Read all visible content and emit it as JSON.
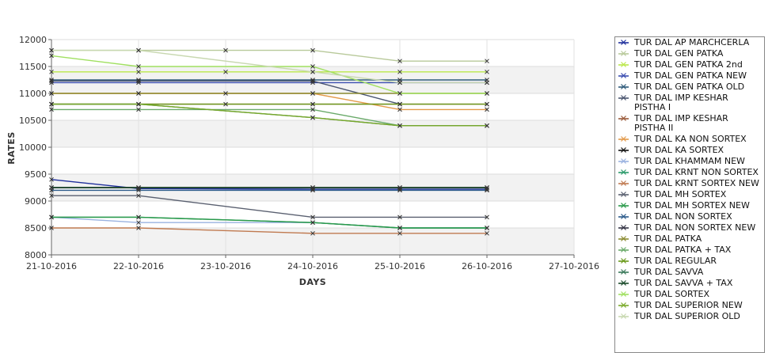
{
  "chart_data": {
    "type": "line",
    "xlabel": "DAYS",
    "ylabel": "RATES",
    "ylim": [
      8000,
      12000
    ],
    "yticks": [
      8000,
      8500,
      9000,
      9500,
      10000,
      10500,
      11000,
      11500,
      12000
    ],
    "x_ticks": [
      "21-10-2016",
      "22-10-2016",
      "23-10-2016",
      "24-10-2016",
      "25-10-2016",
      "26-10-2016",
      "27-10-2016"
    ],
    "grid": true,
    "legend_position": "right",
    "series": [
      {
        "name": "TUR DAL AP MARCHCERLA",
        "color": "#1f2f9c",
        "marker": "x",
        "x": [
          "21-10-2016",
          "22-10-2016",
          "24-10-2016",
          "25-10-2016",
          "26-10-2016"
        ],
        "values": [
          9400,
          9230,
          9220,
          9220,
          9220
        ]
      },
      {
        "name": "TUR DAL GEN PATKA",
        "color": "#b8c99a",
        "marker": "x",
        "x": [
          "21-10-2016",
          "22-10-2016",
          "23-10-2016",
          "24-10-2016",
          "25-10-2016",
          "26-10-2016"
        ],
        "values": [
          11800,
          11800,
          11800,
          11800,
          11600,
          11600
        ]
      },
      {
        "name": "TUR DAL GEN PATKA 2nd",
        "color": "#bbe84a",
        "marker": "x",
        "x": [
          "21-10-2016",
          "22-10-2016",
          "23-10-2016",
          "24-10-2016",
          "25-10-2016",
          "26-10-2016"
        ],
        "values": [
          11400,
          11400,
          11400,
          11400,
          11400,
          11400
        ]
      },
      {
        "name": "TUR DAL GEN PATKA NEW",
        "color": "#3a4db0",
        "marker": "x",
        "x": [
          "21-10-2016",
          "22-10-2016",
          "24-10-2016",
          "25-10-2016",
          "26-10-2016"
        ],
        "values": [
          11200,
          11200,
          11200,
          11200,
          11200
        ]
      },
      {
        "name": "TUR DAL GEN PATKA OLD",
        "color": "#2d5a7a",
        "marker": "x",
        "x": [
          "21-10-2016",
          "22-10-2016",
          "24-10-2016",
          "25-10-2016",
          "26-10-2016"
        ],
        "values": [
          11250,
          11250,
          11250,
          11250,
          11250
        ]
      },
      {
        "name": "TUR DAL IMP KESHAR PISTHA I",
        "color": "#4a5570",
        "marker": "x",
        "x": [
          "21-10-2016",
          "22-10-2016",
          "24-10-2016",
          "25-10-2016"
        ],
        "values": [
          11230,
          11230,
          11230,
          10800
        ]
      },
      {
        "name": "TUR DAL IMP KESHAR PISTHA II",
        "color": "#9a5a3a",
        "marker": "x",
        "x": [
          "21-10-2016",
          "22-10-2016",
          "24-10-2016",
          "25-10-2016",
          "26-10-2016"
        ],
        "values": [
          10800,
          10800,
          10800,
          10800,
          10800
        ]
      },
      {
        "name": "TUR DAL KA NON SORTEX",
        "color": "#e39a4a",
        "marker": "x",
        "x": [
          "21-10-2016",
          "22-10-2016",
          "24-10-2016",
          "25-10-2016",
          "26-10-2016"
        ],
        "values": [
          11000,
          11000,
          11000,
          10700,
          10700
        ]
      },
      {
        "name": "TUR DAL KA SORTEX",
        "color": "#111111",
        "marker": "x",
        "x": [
          "21-10-2016",
          "22-10-2016",
          "24-10-2016",
          "25-10-2016",
          "26-10-2016"
        ],
        "values": [
          9250,
          9250,
          9250,
          9250,
          9250
        ]
      },
      {
        "name": "TUR DAL KHAMMAM NEW",
        "color": "#9ab2e0",
        "marker": "x",
        "x": [
          "21-10-2016",
          "22-10-2016",
          "24-10-2016",
          "25-10-2016",
          "26-10-2016"
        ],
        "values": [
          8700,
          8600,
          8600,
          8500,
          8500
        ]
      },
      {
        "name": "TUR DAL KRNT NON SORTEX",
        "color": "#2a9a6a",
        "marker": "x",
        "x": [
          "21-10-2016",
          "22-10-2016",
          "24-10-2016",
          "25-10-2016",
          "26-10-2016"
        ],
        "values": [
          8700,
          8700,
          8600,
          8500,
          8500
        ]
      },
      {
        "name": "TUR DAL KRNT SORTEX NEW",
        "color": "#c07a50",
        "marker": "x",
        "x": [
          "21-10-2016",
          "22-10-2016",
          "24-10-2016",
          "25-10-2016",
          "26-10-2016"
        ],
        "values": [
          8500,
          8500,
          8400,
          8400,
          8400
        ]
      },
      {
        "name": "TUR DAL MH SORTEX",
        "color": "#5a6070",
        "marker": "x",
        "x": [
          "21-10-2016",
          "22-10-2016",
          "24-10-2016",
          "25-10-2016",
          "26-10-2016"
        ],
        "values": [
          9100,
          9100,
          8700,
          8700,
          8700
        ]
      },
      {
        "name": "TUR DAL MH SORTEX NEW",
        "color": "#2a9a4a",
        "marker": "x",
        "x": [
          "21-10-2016",
          "22-10-2016",
          "24-10-2016",
          "25-10-2016",
          "26-10-2016"
        ],
        "values": [
          8700,
          8700,
          8600,
          8500,
          8500
        ]
      },
      {
        "name": "TUR DAL NON SORTEX",
        "color": "#2a5a8a",
        "marker": "x",
        "x": [
          "21-10-2016",
          "22-10-2016",
          "24-10-2016",
          "25-10-2016",
          "26-10-2016"
        ],
        "values": [
          9200,
          9200,
          9200,
          9200,
          9200
        ]
      },
      {
        "name": "TUR DAL NON SORTEX NEW",
        "color": "#333344",
        "marker": "x",
        "x": [
          "21-10-2016",
          "22-10-2016",
          "24-10-2016",
          "25-10-2016",
          "26-10-2016"
        ],
        "values": [
          9250,
          9250,
          9250,
          9250,
          9250
        ]
      },
      {
        "name": "TUR DAL PATKA",
        "color": "#8a8a30",
        "marker": "x",
        "x": [
          "21-10-2016",
          "22-10-2016",
          "23-10-2016",
          "24-10-2016",
          "25-10-2016",
          "26-10-2016"
        ],
        "values": [
          11000,
          11000,
          11000,
          11000,
          11000,
          11000
        ]
      },
      {
        "name": "TUR DAL PATKA + TAX",
        "color": "#6aaa6a",
        "marker": "x",
        "x": [
          "21-10-2016",
          "22-10-2016",
          "24-10-2016",
          "25-10-2016",
          "26-10-2016"
        ],
        "values": [
          10700,
          10700,
          10700,
          10400,
          10400
        ]
      },
      {
        "name": "TUR DAL REGULAR",
        "color": "#6a9a1a",
        "marker": "x",
        "x": [
          "21-10-2016",
          "22-10-2016",
          "23-10-2016",
          "24-10-2016",
          "25-10-2016",
          "26-10-2016"
        ],
        "values": [
          10800,
          10800,
          10800,
          10800,
          10800,
          10800
        ]
      },
      {
        "name": "TUR DAL SAVVA",
        "color": "#3a7a5a",
        "marker": "x",
        "x": [
          "21-10-2016",
          "22-10-2016",
          "24-10-2016",
          "25-10-2016",
          "26-10-2016"
        ],
        "values": [
          10800,
          10800,
          10550,
          10400,
          10400
        ]
      },
      {
        "name": "TUR DAL SAVVA + TAX",
        "color": "#1a4a2a",
        "marker": "x",
        "x": [
          "21-10-2016",
          "22-10-2016",
          "24-10-2016",
          "25-10-2016",
          "26-10-2016"
        ],
        "values": [
          9250,
          9250,
          9250,
          9250,
          9250
        ]
      },
      {
        "name": "TUR DAL SORTEX",
        "color": "#a0e060",
        "marker": "x",
        "x": [
          "21-10-2016",
          "22-10-2016",
          "24-10-2016",
          "25-10-2016",
          "26-10-2016"
        ],
        "values": [
          11700,
          11500,
          11500,
          11000,
          11000
        ]
      },
      {
        "name": "TUR DAL SUPERIOR NEW",
        "color": "#7aaa2a",
        "marker": "x",
        "x": [
          "21-10-2016",
          "22-10-2016",
          "24-10-2016",
          "25-10-2016",
          "26-10-2016"
        ],
        "values": [
          10800,
          10800,
          10550,
          10400,
          10400
        ]
      },
      {
        "name": "TUR DAL SUPERIOR OLD",
        "color": "#c8d8b0",
        "marker": "x",
        "x": [
          "21-10-2016",
          "22-10-2016",
          "24-10-2016",
          "25-10-2016",
          "26-10-2016"
        ],
        "values": [
          11800,
          11800,
          11400,
          11200,
          11200
        ]
      }
    ]
  }
}
